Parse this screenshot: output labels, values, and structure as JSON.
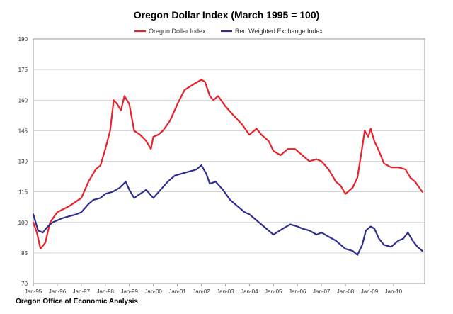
{
  "chart_data": {
    "type": "line",
    "title": "Oregon Dollar Index (March 1995 = 100)",
    "xlabel": "",
    "ylabel": "",
    "ylim": [
      70,
      190
    ],
    "yticks": [
      70,
      85,
      100,
      115,
      130,
      145,
      160,
      175,
      190
    ],
    "ytick_labels": [
      "70",
      "85",
      "100",
      "115",
      "130",
      "145",
      "160",
      "175",
      "190"
    ],
    "xticks": [
      "Jan-95",
      "Jan-96",
      "Jan-97",
      "Jan-98",
      "Jan-99",
      "Jan-00",
      "Jan-01",
      "Jan-02",
      "Jan-03",
      "Jan-04",
      "Jan-05",
      "Jan-06",
      "Jan-07",
      "Jan-08",
      "Jan-09",
      "Jan-10"
    ],
    "x_range": [
      1995.0,
      2011.3
    ],
    "grid": "horizontal",
    "legend_position": "top-center",
    "series": [
      {
        "name": "Oregon Dollar Index",
        "color": "#e8212a",
        "points": [
          [
            1995.0,
            100
          ],
          [
            1995.15,
            95
          ],
          [
            1995.3,
            87
          ],
          [
            1995.5,
            90
          ],
          [
            1995.7,
            100
          ],
          [
            1996.0,
            105
          ],
          [
            1996.5,
            108
          ],
          [
            1997.0,
            112
          ],
          [
            1997.3,
            120
          ],
          [
            1997.6,
            126
          ],
          [
            1997.8,
            128
          ],
          [
            1998.0,
            136
          ],
          [
            1998.2,
            145
          ],
          [
            1998.35,
            160
          ],
          [
            1998.5,
            158
          ],
          [
            1998.65,
            155
          ],
          [
            1998.8,
            162
          ],
          [
            1999.0,
            158
          ],
          [
            1999.2,
            145
          ],
          [
            1999.45,
            143
          ],
          [
            1999.7,
            140
          ],
          [
            1999.9,
            136
          ],
          [
            2000.0,
            142
          ],
          [
            2000.2,
            143
          ],
          [
            2000.4,
            145
          ],
          [
            2000.7,
            150
          ],
          [
            2001.0,
            158
          ],
          [
            2001.3,
            165
          ],
          [
            2001.7,
            168
          ],
          [
            2002.0,
            170
          ],
          [
            2002.15,
            169
          ],
          [
            2002.35,
            162
          ],
          [
            2002.5,
            160
          ],
          [
            2002.7,
            162
          ],
          [
            2003.0,
            157
          ],
          [
            2003.3,
            153
          ],
          [
            2003.7,
            148
          ],
          [
            2004.0,
            143
          ],
          [
            2004.3,
            146
          ],
          [
            2004.5,
            143
          ],
          [
            2004.8,
            140
          ],
          [
            2005.0,
            135
          ],
          [
            2005.3,
            133
          ],
          [
            2005.6,
            136
          ],
          [
            2005.9,
            136
          ],
          [
            2006.2,
            133
          ],
          [
            2006.5,
            130
          ],
          [
            2006.8,
            131
          ],
          [
            2007.0,
            130
          ],
          [
            2007.3,
            126
          ],
          [
            2007.6,
            120
          ],
          [
            2007.8,
            118
          ],
          [
            2008.0,
            114
          ],
          [
            2008.3,
            117
          ],
          [
            2008.5,
            122
          ],
          [
            2008.7,
            137
          ],
          [
            2008.8,
            145
          ],
          [
            2008.95,
            142
          ],
          [
            2009.05,
            146
          ],
          [
            2009.2,
            140
          ],
          [
            2009.4,
            135
          ],
          [
            2009.6,
            129
          ],
          [
            2009.9,
            127
          ],
          [
            2010.2,
            127
          ],
          [
            2010.5,
            126
          ],
          [
            2010.7,
            122
          ],
          [
            2010.9,
            120
          ],
          [
            2011.2,
            115
          ]
        ]
      },
      {
        "name": "Red Weighted Exchange Index",
        "color": "#2e2f8f",
        "points": [
          [
            1995.0,
            104
          ],
          [
            1995.2,
            96
          ],
          [
            1995.4,
            95
          ],
          [
            1995.6,
            98
          ],
          [
            1995.8,
            100
          ],
          [
            1996.2,
            102
          ],
          [
            1996.5,
            103
          ],
          [
            1996.8,
            104
          ],
          [
            1997.0,
            105
          ],
          [
            1997.3,
            109
          ],
          [
            1997.5,
            111
          ],
          [
            1997.8,
            112
          ],
          [
            1998.0,
            114
          ],
          [
            1998.3,
            115
          ],
          [
            1998.6,
            117
          ],
          [
            1998.85,
            120
          ],
          [
            1999.0,
            116
          ],
          [
            1999.2,
            112
          ],
          [
            1999.45,
            114
          ],
          [
            1999.7,
            116
          ],
          [
            2000.0,
            112
          ],
          [
            2000.3,
            116
          ],
          [
            2000.6,
            120
          ],
          [
            2000.9,
            123
          ],
          [
            2001.2,
            124
          ],
          [
            2001.5,
            125
          ],
          [
            2001.8,
            126
          ],
          [
            2002.0,
            128
          ],
          [
            2002.2,
            124
          ],
          [
            2002.35,
            119
          ],
          [
            2002.6,
            120
          ],
          [
            2002.9,
            116
          ],
          [
            2003.2,
            111
          ],
          [
            2003.5,
            108
          ],
          [
            2003.8,
            105
          ],
          [
            2004.0,
            104
          ],
          [
            2004.3,
            101
          ],
          [
            2004.6,
            98
          ],
          [
            2004.8,
            96
          ],
          [
            2005.0,
            94
          ],
          [
            2005.4,
            97
          ],
          [
            2005.7,
            99
          ],
          [
            2006.0,
            98
          ],
          [
            2006.2,
            97
          ],
          [
            2006.5,
            96
          ],
          [
            2006.8,
            94
          ],
          [
            2007.0,
            95
          ],
          [
            2007.3,
            93
          ],
          [
            2007.6,
            91
          ],
          [
            2007.8,
            89
          ],
          [
            2008.0,
            87
          ],
          [
            2008.3,
            86
          ],
          [
            2008.5,
            84
          ],
          [
            2008.7,
            89
          ],
          [
            2008.85,
            96
          ],
          [
            2009.05,
            98
          ],
          [
            2009.2,
            97
          ],
          [
            2009.4,
            92
          ],
          [
            2009.6,
            89
          ],
          [
            2009.9,
            88
          ],
          [
            2010.2,
            91
          ],
          [
            2010.4,
            92
          ],
          [
            2010.6,
            95
          ],
          [
            2010.8,
            91
          ],
          [
            2011.0,
            88
          ],
          [
            2011.2,
            86
          ]
        ]
      }
    ]
  },
  "source": "Oregon Office of Economic Analysis"
}
